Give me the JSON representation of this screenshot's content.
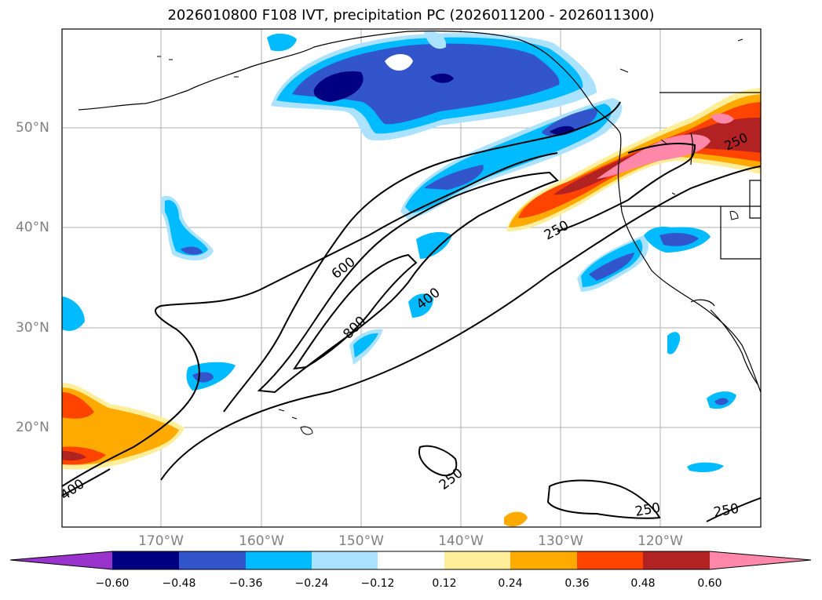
{
  "title": "2026010800 F108 IVT, precipitation PC (2026011200 - 2026011300)",
  "map": {
    "lat_ticks": [
      "50°N",
      "40°N",
      "30°N",
      "20°N"
    ],
    "lon_ticks": [
      "170°W",
      "160°W",
      "150°W",
      "140°W",
      "130°W",
      "120°W"
    ],
    "contour_labels": [
      "600",
      "800",
      "400",
      "250",
      "250",
      "250",
      "250",
      "400"
    ]
  },
  "colorbar": {
    "colors": [
      "#9933cc",
      "#000080",
      "#3355cc",
      "#00bbff",
      "#aae2ff",
      "#ffffff",
      "#ffee99",
      "#ffaa00",
      "#ff4400",
      "#b22222",
      "#ff88aa"
    ],
    "tick_labels": [
      "−0.60",
      "−0.48",
      "−0.36",
      "−0.24",
      "−0.12",
      "0.12",
      "0.24",
      "0.36",
      "0.48",
      "0.60"
    ]
  }
}
